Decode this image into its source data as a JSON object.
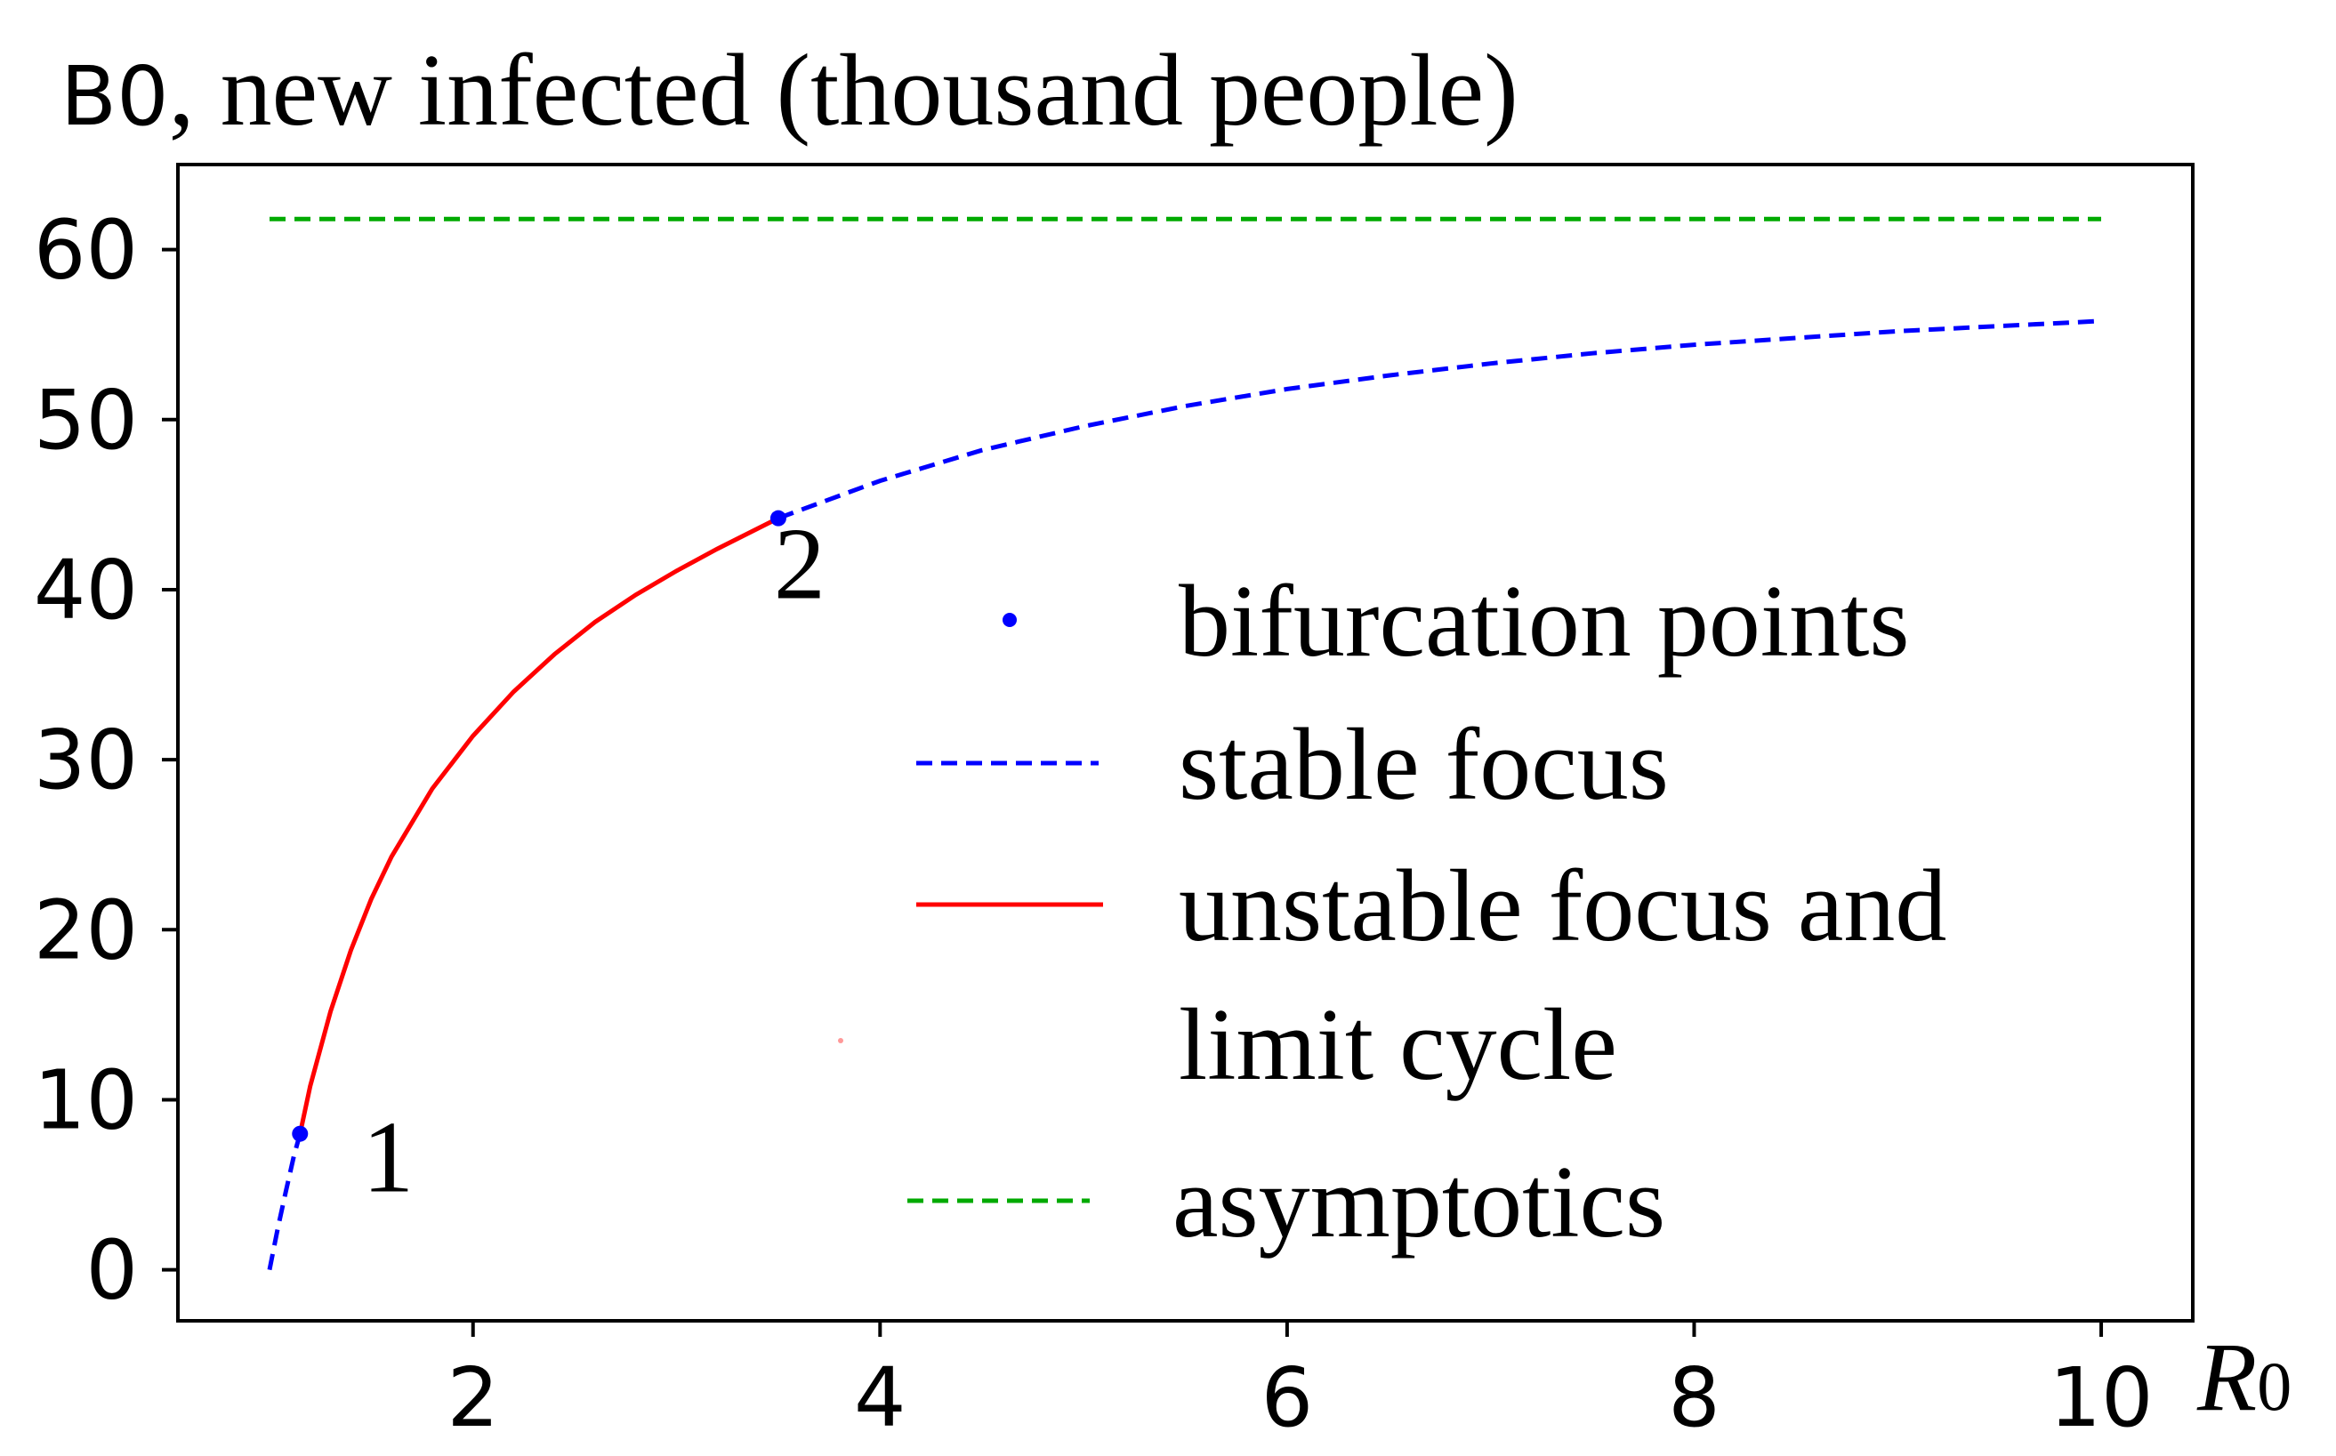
{
  "chart_data": {
    "type": "line",
    "title": "B0, new infected (thousand people)",
    "title_prefix": "B0",
    "title_main": ", new infected (thousand people)",
    "xlabel": "R",
    "xlabel_sub": "0",
    "ylabel": "",
    "xlim": [
      0.55,
      10.45
    ],
    "ylim": [
      -3,
      65
    ],
    "xticks": [
      2,
      4,
      6,
      8,
      10
    ],
    "yticks": [
      0,
      10,
      20,
      30,
      40,
      50,
      60
    ],
    "grid": false,
    "legend_position": "right",
    "asymptote_value": 61.8,
    "series": [
      {
        "name": "stable focus",
        "color": "#0000ff",
        "dash": "dashed",
        "segments": [
          {
            "x": [
              1.0,
              1.04,
              1.08,
              1.12,
              1.15
            ],
            "y": [
              0.0,
              2.4,
              4.6,
              6.7,
              8.0
            ]
          },
          {
            "x": [
              3.5,
              4.0,
              4.5,
              5.0,
              5.5,
              6.0,
              6.5,
              7.0,
              7.5,
              8.0,
              8.5,
              9.0,
              9.5,
              10.0
            ],
            "y": [
              44.2,
              46.4,
              48.2,
              49.6,
              50.8,
              51.8,
              52.6,
              53.3,
              53.9,
              54.4,
              54.8,
              55.2,
              55.5,
              55.8
            ]
          }
        ]
      },
      {
        "name": "unstable focus and limit cycle",
        "name_line1": "unstable focus and",
        "name_line2": "limit cycle",
        "color": "#ff0000",
        "dash": "solid",
        "x": [
          1.15,
          1.2,
          1.3,
          1.4,
          1.5,
          1.6,
          1.8,
          2.0,
          2.2,
          2.4,
          2.6,
          2.8,
          3.0,
          3.2,
          3.5
        ],
        "y": [
          8.0,
          10.8,
          15.2,
          18.8,
          21.8,
          24.3,
          28.3,
          31.4,
          34.0,
          36.2,
          38.1,
          39.7,
          41.1,
          42.4,
          44.2
        ]
      },
      {
        "name": "asymptotics",
        "color": "#00aa00",
        "dash": "dashed",
        "x": [
          1.0,
          10.0
        ],
        "y": [
          61.8,
          61.8
        ]
      }
    ],
    "points": {
      "name": "bifurcation points",
      "color": "#0000ff",
      "x": [
        1.15,
        3.5
      ],
      "y": [
        8.0,
        44.2
      ],
      "labels": [
        "1",
        "2"
      ]
    }
  }
}
